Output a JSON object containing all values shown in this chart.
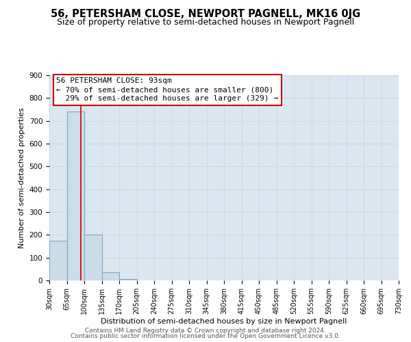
{
  "title": "56, PETERSHAM CLOSE, NEWPORT PAGNELL, MK16 0JG",
  "subtitle": "Size of property relative to semi-detached houses in Newport Pagnell",
  "xlabel": "Distribution of semi-detached houses by size in Newport Pagnell",
  "ylabel": "Number of semi-detached properties",
  "bin_edges": [
    30,
    65,
    100,
    135,
    170,
    205,
    240,
    275,
    310,
    345,
    380,
    415,
    450,
    485,
    520,
    555,
    590,
    625,
    660,
    695,
    730
  ],
  "bin_heights": [
    175,
    740,
    200,
    37,
    5,
    0,
    0,
    0,
    0,
    0,
    0,
    0,
    0,
    0,
    0,
    0,
    0,
    0,
    0,
    0
  ],
  "bar_facecolor": "#ccdce8",
  "bar_edgecolor": "#7aaac8",
  "grid_color": "#d0d8e0",
  "bg_color": "#dce6f0",
  "property_line_x": 93,
  "property_line_color": "#cc0000",
  "annotation_line1": "56 PETERSHAM CLOSE: 93sqm",
  "annotation_line2": "← 70% of semi-detached houses are smaller (800)",
  "annotation_line3": "  29% of semi-detached houses are larger (329) →",
  "ylim": [
    0,
    900
  ],
  "yticks": [
    0,
    100,
    200,
    300,
    400,
    500,
    600,
    700,
    800,
    900
  ],
  "footer_line1": "Contains HM Land Registry data © Crown copyright and database right 2024.",
  "footer_line2": "Contains public sector information licensed under the Open Government Licence v3.0.",
  "title_fontsize": 10.5,
  "subtitle_fontsize": 9,
  "tick_fontsize": 7,
  "axis_label_fontsize": 8,
  "annotation_fontsize": 8,
  "footer_fontsize": 6.5
}
